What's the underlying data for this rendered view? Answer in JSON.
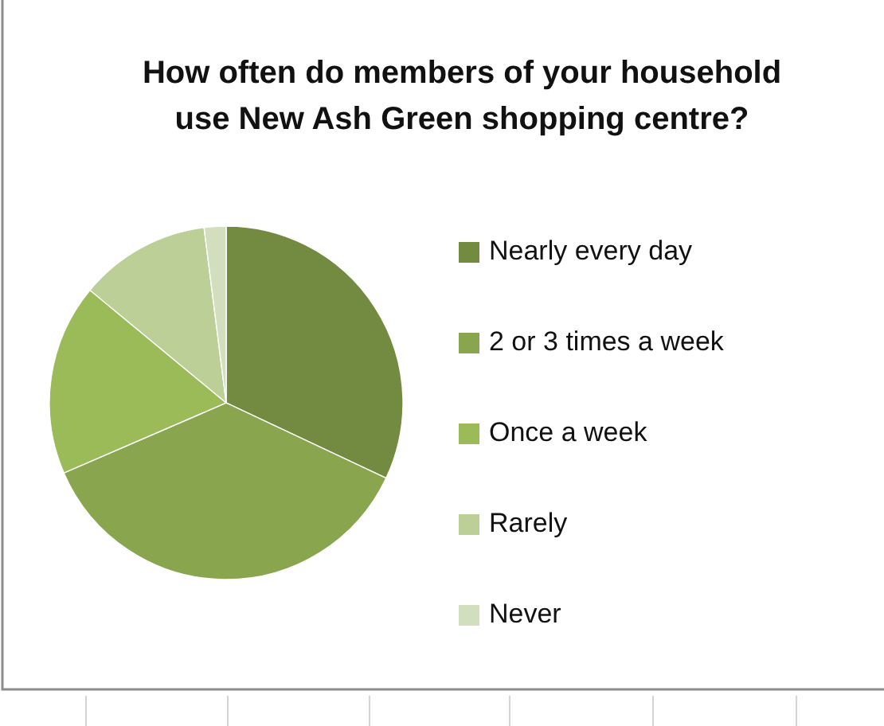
{
  "chart_data": {
    "type": "pie",
    "title": "How often do members of your household use New Ash Green shopping centre?",
    "categories": [
      "Nearly every day",
      "2 or 3 times a week",
      "Once a week",
      "Rarely",
      "Never"
    ],
    "values": [
      32,
      36.5,
      17.5,
      12,
      2
    ],
    "colors": [
      "#738b40",
      "#89a54e",
      "#9bbb59",
      "#bbcf96",
      "#d2dfbe"
    ],
    "legend": "right"
  }
}
